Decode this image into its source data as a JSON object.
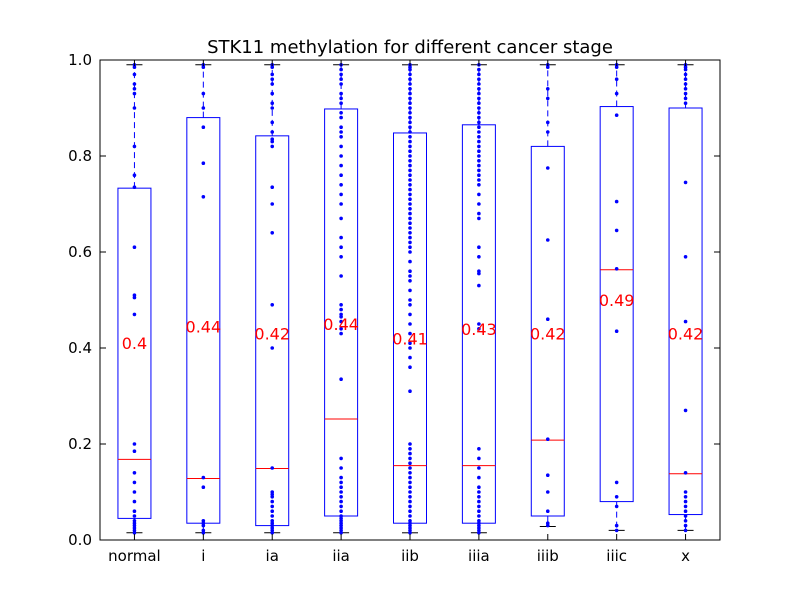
{
  "chart_data": {
    "type": "box",
    "title": "STK11 methylation for different cancer stage",
    "xlabel": "",
    "ylabel": "",
    "ylim": [
      0.0,
      1.0
    ],
    "yticks": [
      "0.0",
      "0.2",
      "0.4",
      "0.6",
      "0.8",
      "1.0"
    ],
    "categories": [
      "normal",
      "i",
      "ia",
      "iia",
      "iib",
      "iiia",
      "iiib",
      "iiic",
      "x"
    ],
    "boxes": [
      {
        "label": "normal",
        "whisker_low": 0.015,
        "q1": 0.045,
        "median": 0.168,
        "q3": 0.733,
        "whisker_high": 0.99,
        "mean_label": "0.4",
        "mean_label_y": 0.41,
        "points": [
          0.99,
          0.985,
          0.97,
          0.95,
          0.94,
          0.93,
          0.9,
          0.82,
          0.76,
          0.735,
          0.61,
          0.51,
          0.505,
          0.47,
          0.2,
          0.185,
          0.14,
          0.12,
          0.1,
          0.08,
          0.06,
          0.05,
          0.04,
          0.035,
          0.03,
          0.025,
          0.02,
          0.015
        ]
      },
      {
        "label": "i",
        "whisker_low": 0.015,
        "q1": 0.035,
        "median": 0.128,
        "q3": 0.88,
        "whisker_high": 0.99,
        "mean_label": "0.44",
        "mean_label_y": 0.445,
        "points": [
          0.99,
          0.985,
          0.93,
          0.9,
          0.86,
          0.785,
          0.715,
          0.13,
          0.11,
          0.04,
          0.035,
          0.03,
          0.02,
          0.015
        ]
      },
      {
        "label": "ia",
        "whisker_low": 0.015,
        "q1": 0.03,
        "median": 0.149,
        "q3": 0.842,
        "whisker_high": 0.99,
        "mean_label": "0.42",
        "mean_label_y": 0.43,
        "points": [
          0.99,
          0.985,
          0.97,
          0.96,
          0.95,
          0.93,
          0.91,
          0.9,
          0.87,
          0.85,
          0.835,
          0.83,
          0.82,
          0.735,
          0.7,
          0.64,
          0.49,
          0.4,
          0.15,
          0.1,
          0.095,
          0.09,
          0.08,
          0.07,
          0.06,
          0.05,
          0.04,
          0.035,
          0.03,
          0.025,
          0.02,
          0.015
        ]
      },
      {
        "label": "iia",
        "whisker_low": 0.015,
        "q1": 0.05,
        "median": 0.252,
        "q3": 0.898,
        "whisker_high": 0.99,
        "mean_label": "0.44",
        "mean_label_y": 0.45,
        "points": [
          0.99,
          0.98,
          0.97,
          0.96,
          0.95,
          0.93,
          0.92,
          0.91,
          0.89,
          0.88,
          0.86,
          0.85,
          0.84,
          0.82,
          0.8,
          0.78,
          0.76,
          0.74,
          0.72,
          0.7,
          0.67,
          0.63,
          0.61,
          0.59,
          0.55,
          0.49,
          0.48,
          0.47,
          0.465,
          0.455,
          0.44,
          0.43,
          0.335,
          0.17,
          0.15,
          0.13,
          0.12,
          0.11,
          0.1,
          0.09,
          0.08,
          0.07,
          0.06,
          0.05,
          0.045,
          0.04,
          0.035,
          0.03,
          0.025,
          0.02,
          0.015
        ]
      },
      {
        "label": "iib",
        "whisker_low": 0.015,
        "q1": 0.035,
        "median": 0.155,
        "q3": 0.848,
        "whisker_high": 0.99,
        "mean_label": "0.41",
        "mean_label_y": 0.42,
        "points": [
          0.99,
          0.985,
          0.98,
          0.97,
          0.96,
          0.95,
          0.94,
          0.93,
          0.92,
          0.91,
          0.9,
          0.89,
          0.88,
          0.87,
          0.86,
          0.85,
          0.84,
          0.83,
          0.82,
          0.81,
          0.8,
          0.79,
          0.78,
          0.77,
          0.76,
          0.75,
          0.74,
          0.73,
          0.72,
          0.71,
          0.7,
          0.69,
          0.68,
          0.67,
          0.66,
          0.65,
          0.64,
          0.63,
          0.62,
          0.61,
          0.6,
          0.58,
          0.56,
          0.55,
          0.54,
          0.52,
          0.5,
          0.49,
          0.47,
          0.45,
          0.43,
          0.41,
          0.4,
          0.38,
          0.36,
          0.31,
          0.2,
          0.19,
          0.18,
          0.17,
          0.16,
          0.15,
          0.14,
          0.13,
          0.12,
          0.11,
          0.1,
          0.09,
          0.08,
          0.07,
          0.06,
          0.05,
          0.04,
          0.035,
          0.03,
          0.025,
          0.02,
          0.015
        ]
      },
      {
        "label": "iiia",
        "whisker_low": 0.015,
        "q1": 0.035,
        "median": 0.155,
        "q3": 0.865,
        "whisker_high": 0.99,
        "mean_label": "0.43",
        "mean_label_y": 0.44,
        "points": [
          0.99,
          0.98,
          0.97,
          0.96,
          0.95,
          0.94,
          0.93,
          0.92,
          0.91,
          0.9,
          0.89,
          0.88,
          0.87,
          0.86,
          0.85,
          0.84,
          0.83,
          0.82,
          0.81,
          0.8,
          0.79,
          0.78,
          0.77,
          0.76,
          0.75,
          0.74,
          0.72,
          0.7,
          0.68,
          0.67,
          0.61,
          0.59,
          0.56,
          0.555,
          0.53,
          0.45,
          0.44,
          0.19,
          0.17,
          0.15,
          0.13,
          0.11,
          0.1,
          0.09,
          0.08,
          0.07,
          0.06,
          0.05,
          0.04,
          0.035,
          0.03,
          0.025,
          0.02,
          0.015
        ]
      },
      {
        "label": "iiib",
        "whisker_low": 0.028,
        "q1": 0.05,
        "median": 0.208,
        "q3": 0.82,
        "whisker_high": 0.99,
        "mean_label": "0.42",
        "mean_label_y": 0.43,
        "points": [
          0.99,
          0.985,
          0.94,
          0.92,
          0.87,
          0.85,
          0.775,
          0.625,
          0.46,
          0.21,
          0.135,
          0.1,
          0.06,
          0.035,
          0.03
        ]
      },
      {
        "label": "iiic",
        "whisker_low": 0.02,
        "q1": 0.08,
        "median": 0.563,
        "q3": 0.903,
        "whisker_high": 0.99,
        "mean_label": "0.49",
        "mean_label_y": 0.5,
        "points": [
          0.99,
          0.985,
          0.96,
          0.93,
          0.885,
          0.705,
          0.645,
          0.565,
          0.435,
          0.12,
          0.09,
          0.07,
          0.03,
          0.02
        ]
      },
      {
        "label": "x",
        "whisker_low": 0.02,
        "q1": 0.053,
        "median": 0.138,
        "q3": 0.9,
        "whisker_high": 0.99,
        "mean_label": "0.42",
        "mean_label_y": 0.43,
        "points": [
          0.99,
          0.985,
          0.98,
          0.97,
          0.96,
          0.95,
          0.94,
          0.93,
          0.92,
          0.91,
          0.745,
          0.59,
          0.455,
          0.27,
          0.14,
          0.1,
          0.09,
          0.08,
          0.07,
          0.06,
          0.05,
          0.04,
          0.03,
          0.02
        ]
      }
    ],
    "colors": {
      "box": "#0000ff",
      "median": "#ff0000",
      "mean_label": "#ff0000",
      "axes": "#000000"
    },
    "grid": false,
    "legend": "none"
  }
}
